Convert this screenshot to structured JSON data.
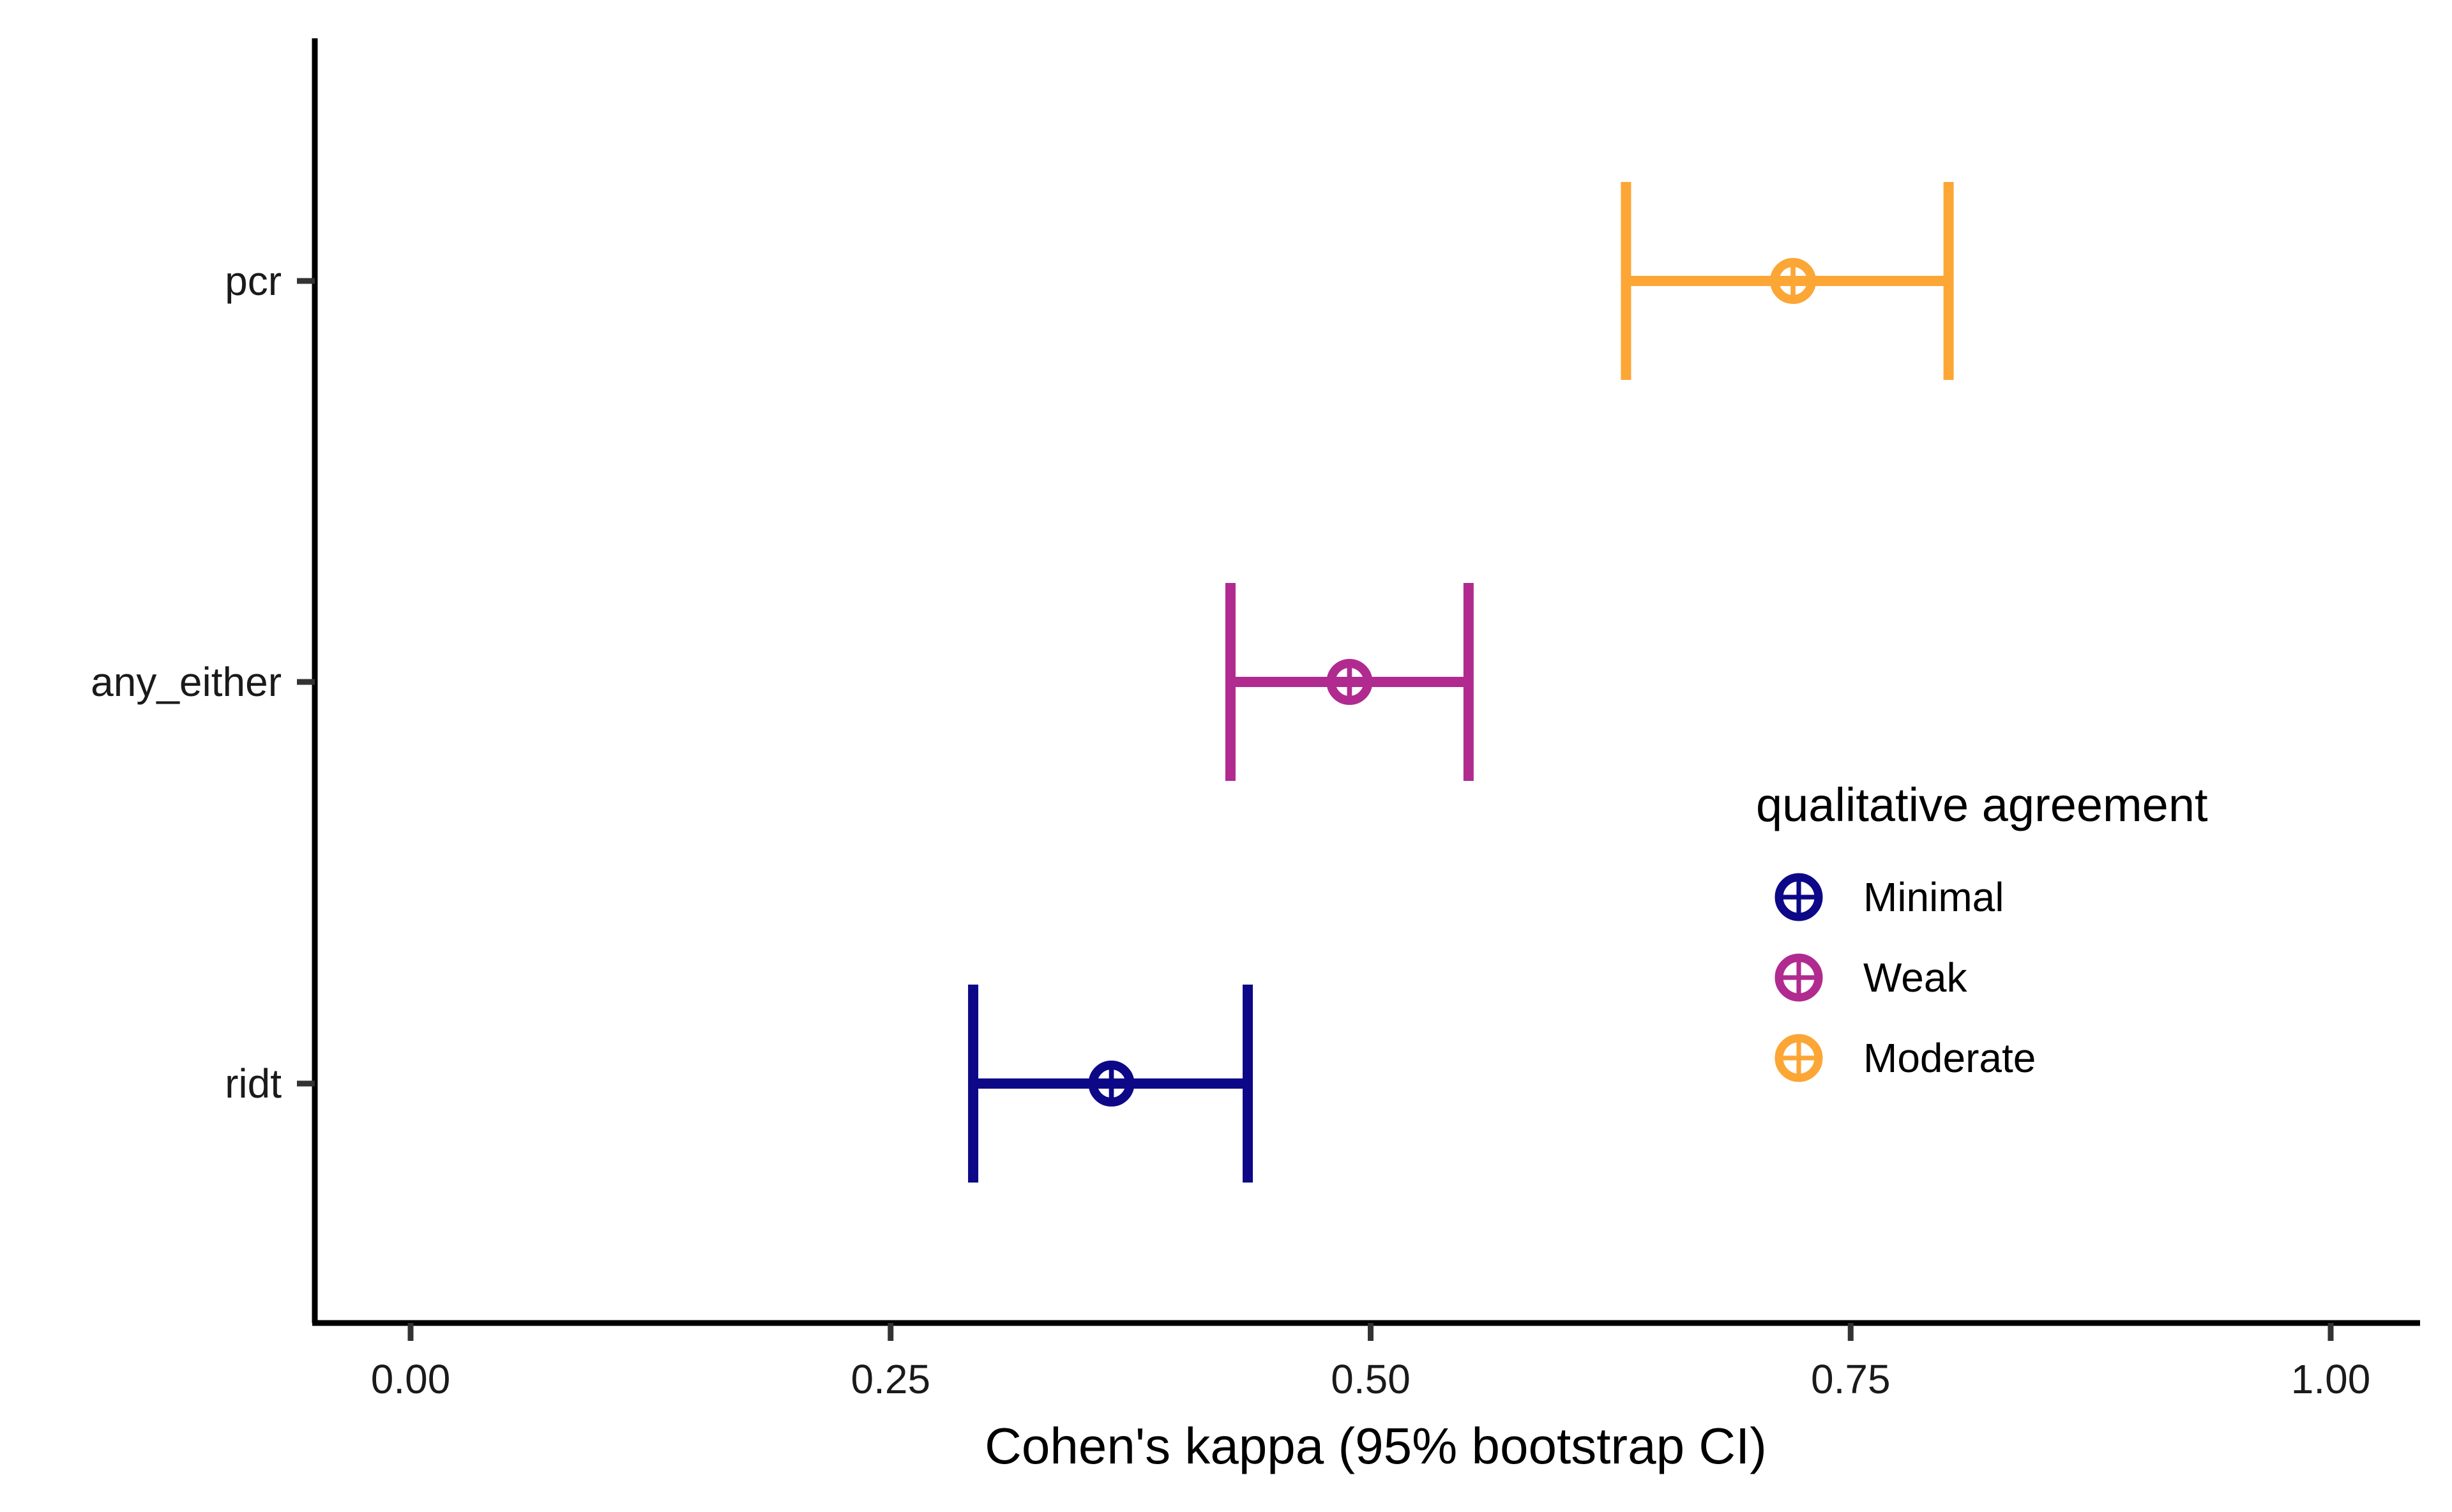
{
  "chart_data": {
    "type": "scatter",
    "subtype": "forest-errorbar",
    "title": "",
    "xlabel": "Cohen's kappa (95% bootstrap CI)",
    "ylabel": "",
    "xlim": [
      -0.05,
      1.05
    ],
    "x_ticks": [
      0.0,
      0.25,
      0.5,
      0.75,
      1.0
    ],
    "x_tick_labels": [
      "0.00",
      "0.25",
      "0.50",
      "0.75",
      "1.00"
    ],
    "categories": [
      "ridt",
      "any_either",
      "pcr"
    ],
    "grid": false,
    "points": [
      {
        "category": "ridt",
        "estimate": 0.365,
        "ci_low": 0.293,
        "ci_high": 0.436,
        "agreement": "Minimal"
      },
      {
        "category": "any_either",
        "estimate": 0.489,
        "ci_low": 0.427,
        "ci_high": 0.551,
        "agreement": "Weak"
      },
      {
        "category": "pcr",
        "estimate": 0.72,
        "ci_low": 0.633,
        "ci_high": 0.801,
        "agreement": "Moderate"
      }
    ],
    "legend": {
      "title": "qualitative agreement",
      "placement": "right",
      "entries": [
        {
          "label": "Minimal",
          "color": "#0d0887"
        },
        {
          "label": "Weak",
          "color": "#b12a90"
        },
        {
          "label": "Moderate",
          "color": "#fca636"
        }
      ]
    }
  }
}
